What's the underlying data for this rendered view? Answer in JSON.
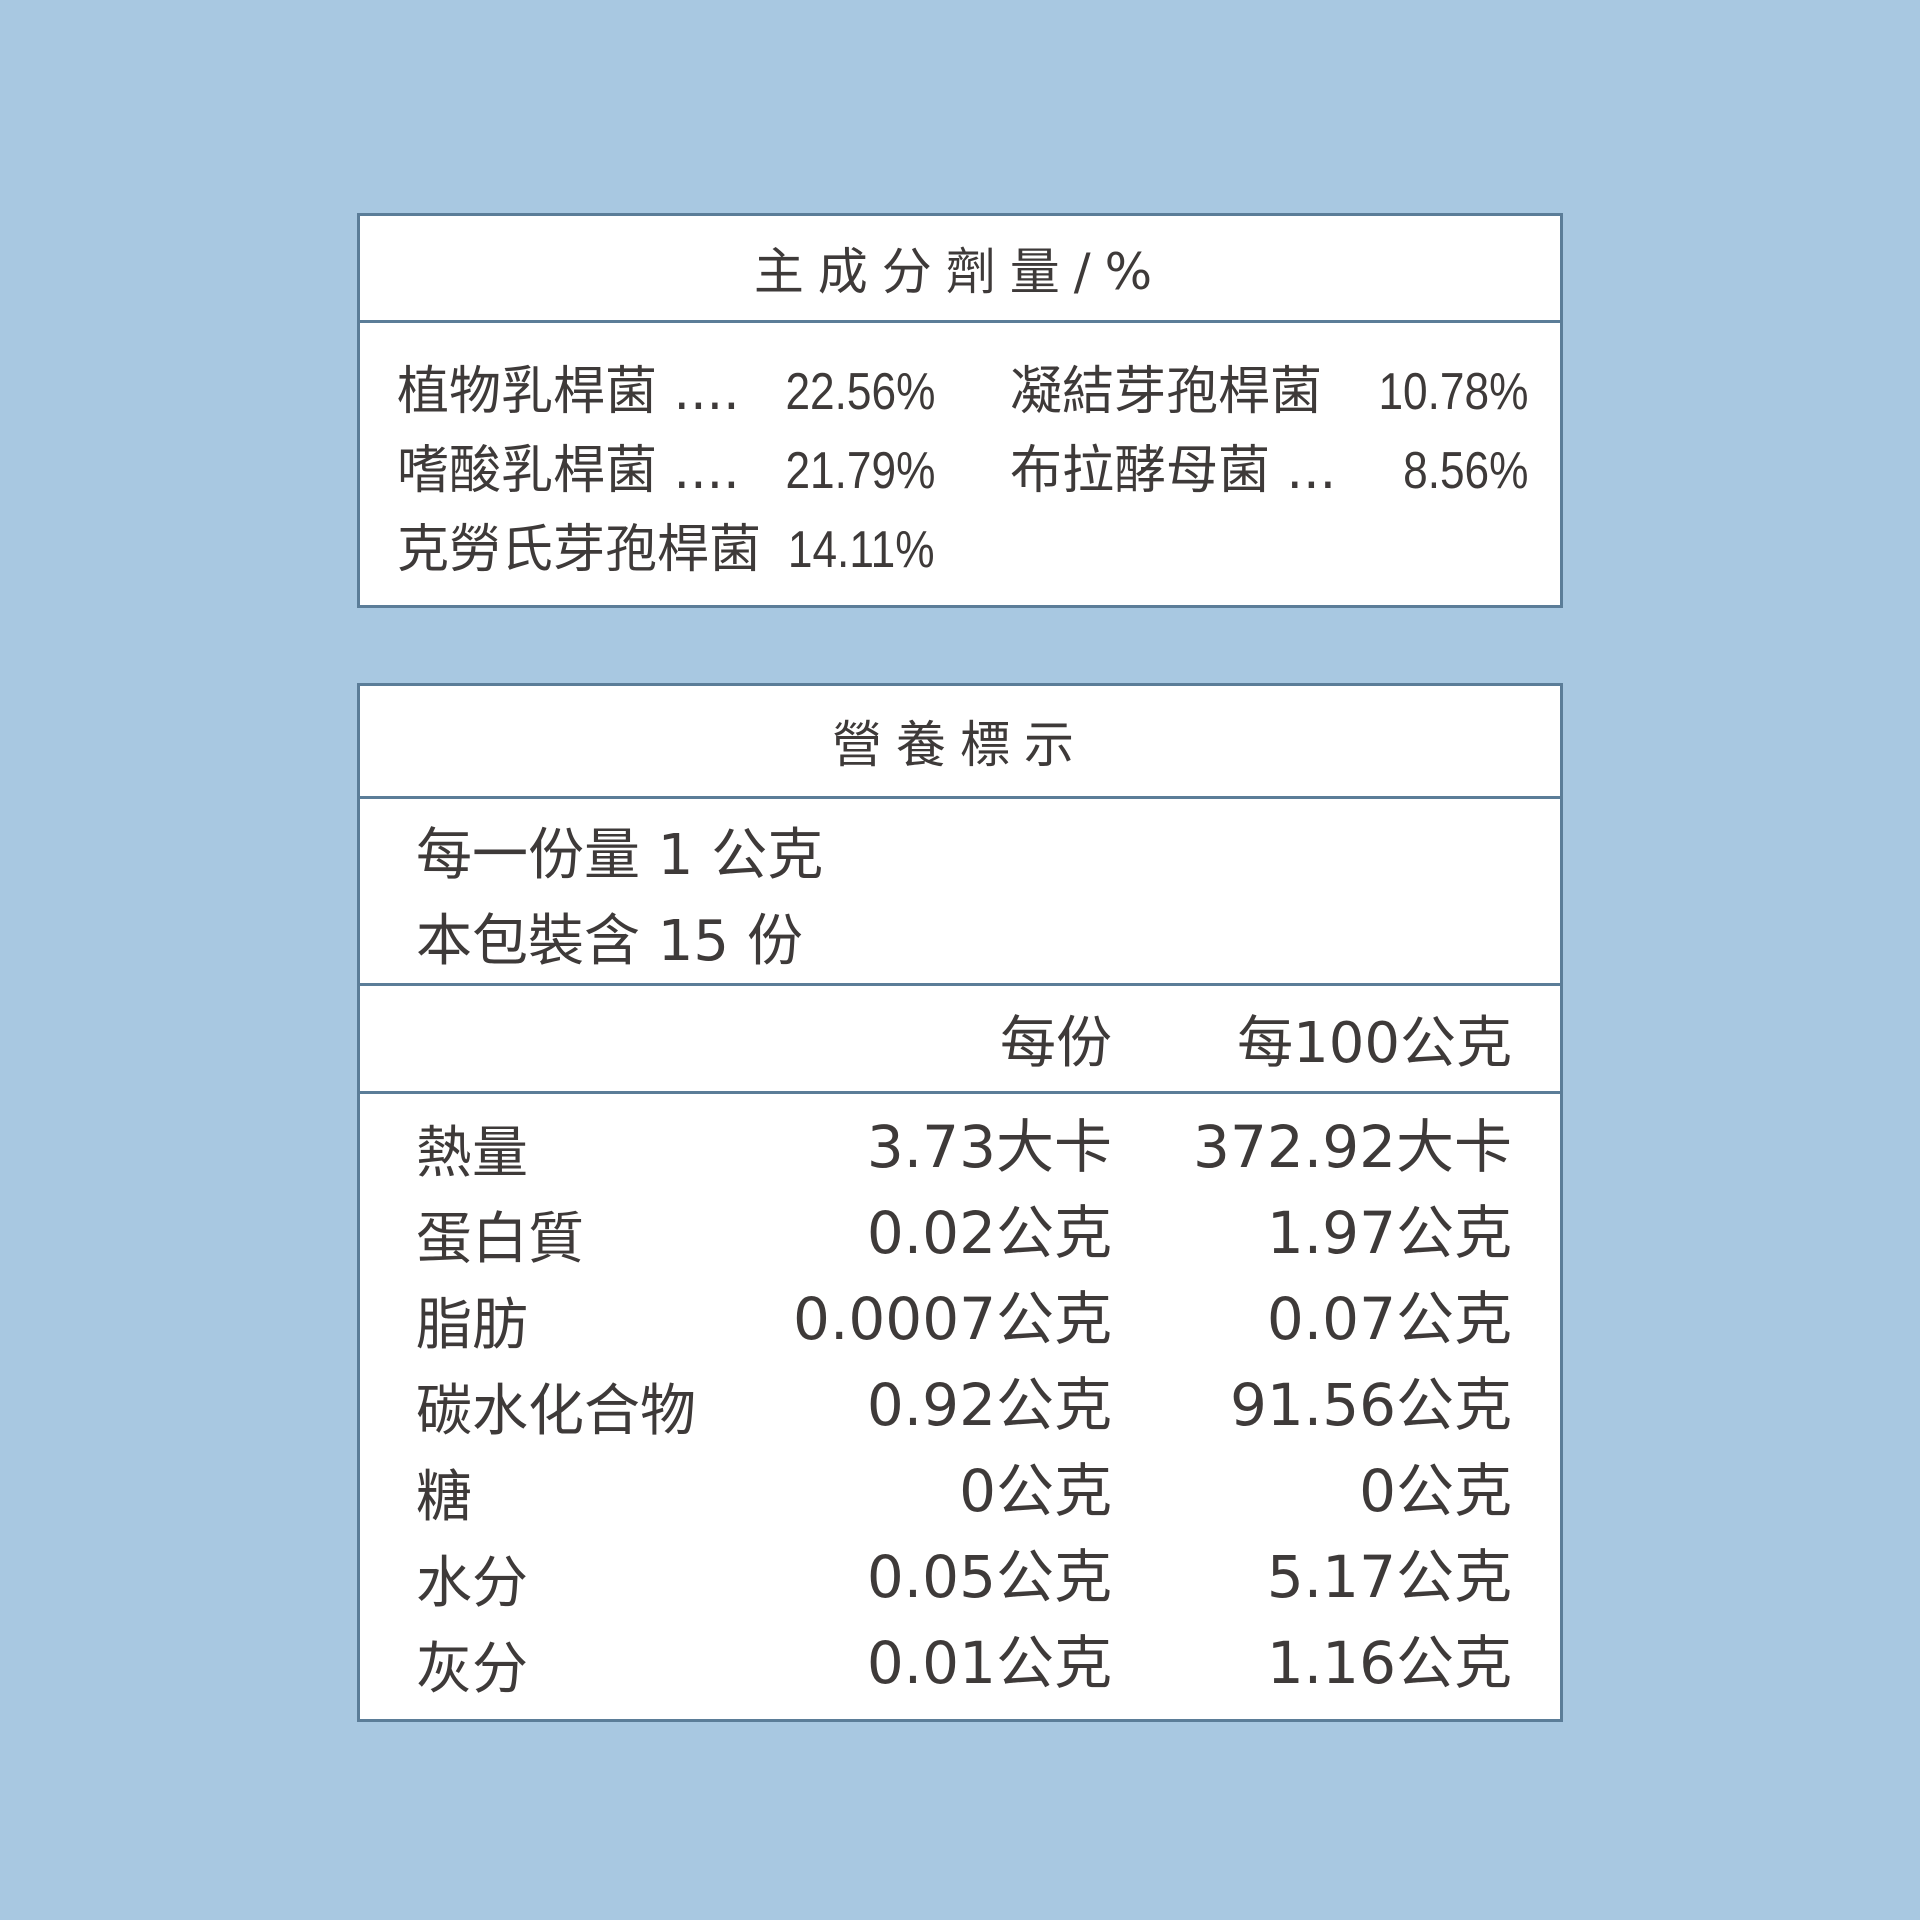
{
  "ingredients": {
    "title": "主成分劑量/%",
    "items": [
      {
        "name": "植物乳桿菌",
        "leader": " ....",
        "value": "22.56%"
      },
      {
        "name": "凝結芽孢桿菌",
        "leader": " ",
        "value": "10.78%"
      },
      {
        "name": "嗜酸乳桿菌",
        "leader": " ....",
        "value": "21.79%"
      },
      {
        "name": "布拉酵母菌",
        "leader": " ...",
        "value": "8.56%"
      },
      {
        "name": "克勞氏芽孢桿菌",
        "leader": " ",
        "value": "14.11%"
      }
    ]
  },
  "nutrition": {
    "title": "營養標示",
    "serving_size": "每一份量 1 公克",
    "servings_per_pack": "本包裝含 15 份",
    "col_per_serving": "每份",
    "col_per_100g": "每100公克",
    "rows": [
      {
        "label": "熱量",
        "per_serving": "3.73大卡",
        "per_100g": "372.92大卡"
      },
      {
        "label": "蛋白質",
        "per_serving": "0.02公克",
        "per_100g": "1.97公克"
      },
      {
        "label": "脂肪",
        "per_serving": "0.0007公克",
        "per_100g": "0.07公克"
      },
      {
        "label": "碳水化合物",
        "per_serving": "0.92公克",
        "per_100g": "91.56公克"
      },
      {
        "label": "糖",
        "per_serving": "0公克",
        "per_100g": "0公克"
      },
      {
        "label": "水分",
        "per_serving": "0.05公克",
        "per_100g": "5.17公克"
      },
      {
        "label": "灰分",
        "per_serving": "0.01公克",
        "per_100g": "1.16公克"
      }
    ]
  },
  "colors": {
    "background": "#a8c8e1",
    "border": "#5b7d98",
    "text": "#3e3a39"
  }
}
